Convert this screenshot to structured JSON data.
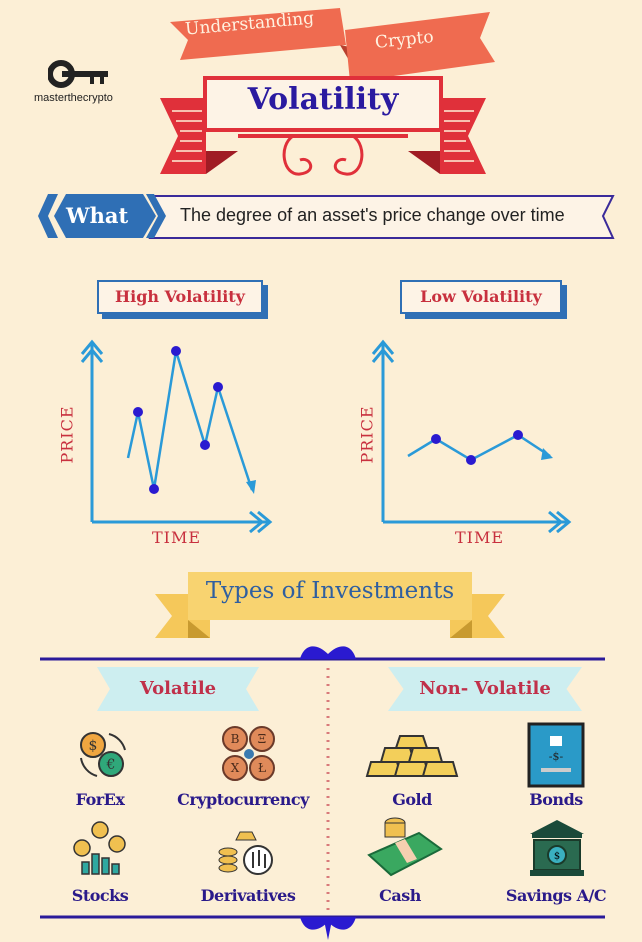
{
  "header": {
    "ribbon_left": "Understanding",
    "ribbon_right": "Crypto",
    "title": "Volatility",
    "logo_text": "masterthecrypto"
  },
  "definition": {
    "label": "What",
    "text": "The degree of an asset's price change over time"
  },
  "charts": {
    "high": {
      "title": "High Volatility",
      "ylabel": "PRICE",
      "xlabel": "TIME"
    },
    "low": {
      "title": "Low Volatility",
      "ylabel": "PRICE",
      "xlabel": "TIME"
    }
  },
  "investments": {
    "title": "Types of Investments",
    "volatile": {
      "label": "Volatile",
      "items": [
        {
          "label": "ForEx",
          "icon": "currency-exchange-icon"
        },
        {
          "label": "Cryptocurrency",
          "icon": "crypto-coins-icon"
        },
        {
          "label": "Stocks",
          "icon": "stocks-icon"
        },
        {
          "label": "Derivatives",
          "icon": "derivatives-icon"
        }
      ]
    },
    "non_volatile": {
      "label": "Non- Volatile",
      "items": [
        {
          "label": "Gold",
          "icon": "gold-bars-icon"
        },
        {
          "label": "Bonds",
          "icon": "bond-certificate-icon"
        },
        {
          "label": "Cash",
          "icon": "cash-icon"
        },
        {
          "label": "Savings A/C",
          "icon": "bank-icon"
        }
      ]
    }
  },
  "colors": {
    "background": "#fcefd6",
    "ribbon": "#ef6b50",
    "title": "#2a1aa0",
    "accent_red": "#e0303a",
    "blue": "#2f6fb5",
    "chart_line": "#2a8fd0",
    "gold": "#f5c85a"
  }
}
